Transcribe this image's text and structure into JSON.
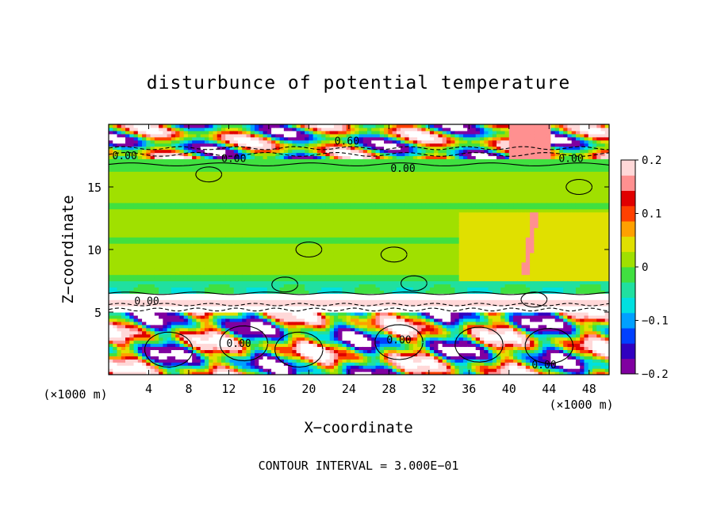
{
  "chart_data": {
    "type": "heatmap",
    "title": "disturbunce of potential temperature",
    "xlabel": "X−coordinate",
    "ylabel": "Z−coordinate",
    "x_unit": "(×1000 m)",
    "y_unit": "(×1000 m)",
    "xlim": [
      0,
      50
    ],
    "ylim": [
      0,
      20
    ],
    "x_ticks": [
      4,
      8,
      12,
      16,
      20,
      24,
      28,
      32,
      36,
      40,
      44,
      48
    ],
    "y_ticks": [
      5,
      10,
      15
    ],
    "footer": "CONTOUR INTERVAL = 3.000E−01",
    "colorbar": {
      "min": -0.2,
      "max": 0.2,
      "ticks": [
        0.2,
        0.1,
        0,
        -0.1,
        -0.2
      ],
      "tick_labels": [
        "0.2",
        "0.1",
        "0",
        "−0.1",
        "−0.2"
      ],
      "colors": [
        "#8000a0",
        "#3000c0",
        "#0040ff",
        "#00a0ff",
        "#00e0e0",
        "#20e0a0",
        "#40e040",
        "#a0e000",
        "#e0e000",
        "#ffa000",
        "#ff4000",
        "#e00000",
        "#ff9090",
        "#ffd8d8"
      ]
    },
    "contour_labels": [
      {
        "text": "0.00",
        "x": 1.6,
        "z": 17.2
      },
      {
        "text": "0.00",
        "x": 12.5,
        "z": 17.0
      },
      {
        "text": "0.60",
        "x": 23.8,
        "z": 18.4
      },
      {
        "text": "0.00",
        "x": 29.4,
        "z": 16.2
      },
      {
        "text": "0.00",
        "x": 46.2,
        "z": 17.0
      },
      {
        "text": "0.00",
        "x": 3.8,
        "z": 5.6
      },
      {
        "text": "0.00",
        "x": 13.0,
        "z": 2.2
      },
      {
        "text": "0.00",
        "x": 29.0,
        "z": 2.5
      },
      {
        "text": "0.00",
        "x": 43.5,
        "z": 0.5
      }
    ]
  }
}
